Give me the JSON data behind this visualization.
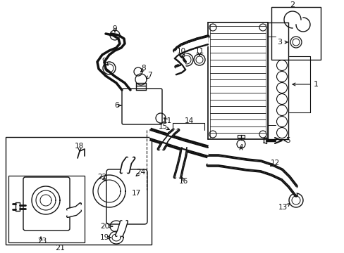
{
  "bg_color": "#ffffff",
  "lc": "#111111",
  "fig_w": 4.89,
  "fig_h": 3.6,
  "dpi": 100,
  "xlim": [
    0,
    489
  ],
  "ylim": [
    0,
    360
  ]
}
